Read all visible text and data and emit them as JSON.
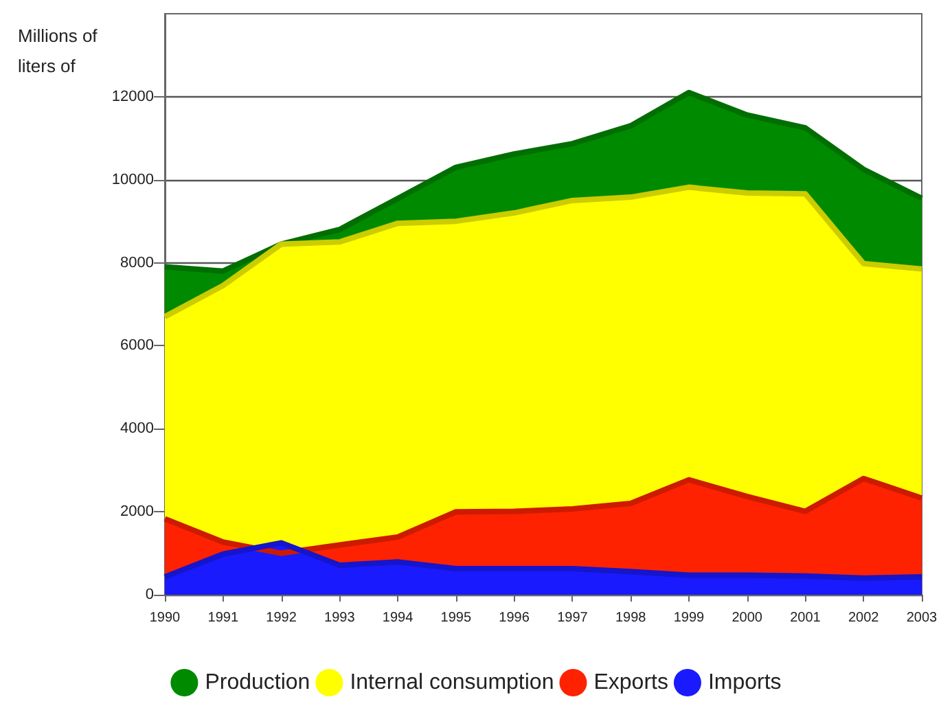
{
  "chart_data": {
    "type": "area",
    "ylabel": "Millions of liters of",
    "categories": [
      "1990",
      "1991",
      "1992",
      "1993",
      "1994",
      "1995",
      "1996",
      "1997",
      "1998",
      "1999",
      "2000",
      "2001",
      "2002",
      "2003"
    ],
    "series": [
      {
        "name": "Production",
        "color": "#008a00",
        "values": [
          7900,
          7800,
          8450,
          8800,
          9550,
          10300,
          10620,
          10870,
          11300,
          12100,
          11560,
          11250,
          10250,
          9550
        ]
      },
      {
        "name": "Internal consumption",
        "color": "#ffff00",
        "values": [
          6700,
          7450,
          8450,
          8500,
          8950,
          9000,
          9200,
          9500,
          9580,
          9820,
          9680,
          9660,
          7980,
          7850
        ]
      },
      {
        "name": "Exports",
        "color": "#ff2200",
        "values": [
          1830,
          1270,
          1000,
          1200,
          1390,
          2000,
          2010,
          2070,
          2200,
          2770,
          2370,
          2010,
          2800,
          2330
        ]
      },
      {
        "name": "Imports",
        "color": "#1a1aff",
        "values": [
          430,
          980,
          1250,
          710,
          790,
          630,
          630,
          630,
          560,
          470,
          470,
          450,
          400,
          430
        ]
      }
    ],
    "ylim": [
      0,
      14000
    ],
    "yticks": [
      0,
      2000,
      4000,
      6000,
      8000,
      10000,
      12000
    ],
    "grid": "y",
    "legend": "bottom"
  }
}
